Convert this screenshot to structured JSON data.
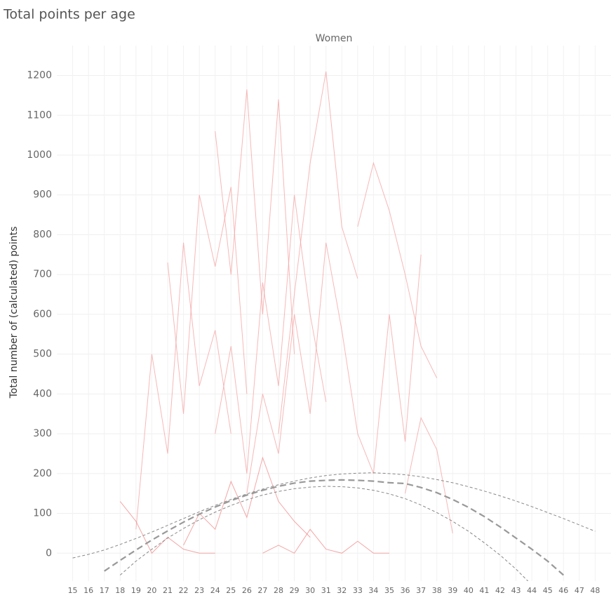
{
  "chart_data": {
    "type": "line",
    "title": "Total points per age",
    "facet": "Women",
    "ylabel": "Total number of (calculated) points",
    "x": [
      15,
      16,
      17,
      18,
      19,
      20,
      21,
      22,
      23,
      24,
      25,
      26,
      27,
      28,
      29,
      30,
      31,
      32,
      33,
      34,
      35,
      36,
      37,
      38,
      39,
      40,
      41,
      42,
      43,
      44,
      45,
      46,
      47,
      48
    ],
    "xlim": [
      14,
      49
    ],
    "ylim": [
      -70,
      1275
    ],
    "yticks": [
      0,
      100,
      200,
      300,
      400,
      500,
      600,
      700,
      800,
      900,
      1000,
      1100,
      1200
    ],
    "grid": true,
    "series": [
      {
        "color": "#f4a0a0",
        "values": [
          null,
          null,
          null,
          null,
          null,
          null,
          null,
          null,
          null,
          null,
          null,
          null,
          null,
          300,
          650,
          980,
          1210,
          820,
          690,
          null,
          null,
          null,
          null,
          null,
          null,
          null,
          null,
          null,
          null,
          null,
          null,
          null,
          null,
          null
        ]
      },
      {
        "color": "#f4a0a0",
        "values": [
          null,
          null,
          null,
          null,
          null,
          null,
          null,
          null,
          null,
          1060,
          700,
          1165,
          600,
          1140,
          500,
          null,
          null,
          null,
          null,
          null,
          null,
          null,
          null,
          null,
          null,
          null,
          null,
          null,
          null,
          null,
          null,
          null,
          null,
          null
        ]
      },
      {
        "color": "#f4a0a0",
        "values": [
          null,
          null,
          null,
          null,
          null,
          null,
          730,
          350,
          900,
          720,
          920,
          400,
          null,
          null,
          null,
          null,
          null,
          null,
          null,
          null,
          null,
          null,
          null,
          null,
          null,
          null,
          null,
          null,
          null,
          null,
          null,
          null,
          null,
          null
        ]
      },
      {
        "color": "#f4a0a0",
        "values": [
          null,
          null,
          null,
          null,
          null,
          null,
          null,
          null,
          null,
          null,
          null,
          null,
          null,
          null,
          null,
          null,
          null,
          null,
          820,
          980,
          860,
          700,
          520,
          440,
          null,
          null,
          null,
          null,
          null,
          null,
          null,
          null,
          null,
          null
        ]
      },
      {
        "color": "#f4a0a0",
        "values": [
          null,
          null,
          null,
          null,
          60,
          500,
          250,
          780,
          420,
          560,
          300,
          null,
          null,
          null,
          null,
          null,
          null,
          null,
          null,
          null,
          null,
          null,
          null,
          null,
          null,
          null,
          null,
          null,
          null,
          null,
          null,
          null,
          null,
          null
        ]
      },
      {
        "color": "#f4a0a0",
        "values": [
          null,
          null,
          null,
          null,
          null,
          null,
          null,
          null,
          null,
          null,
          null,
          150,
          400,
          250,
          600,
          350,
          780,
          560,
          300,
          null,
          null,
          null,
          null,
          null,
          null,
          null,
          null,
          null,
          null,
          null,
          null,
          null,
          null,
          null
        ]
      },
      {
        "color": "#f08888",
        "values": [
          null,
          null,
          null,
          null,
          null,
          null,
          null,
          20,
          100,
          60,
          180,
          90,
          240,
          130,
          80,
          40,
          null,
          null,
          null,
          null,
          null,
          null,
          null,
          null,
          null,
          null,
          null,
          null,
          null,
          null,
          null,
          null,
          null,
          null
        ]
      },
      {
        "color": "#f4a0a0",
        "values": [
          null,
          null,
          null,
          null,
          null,
          null,
          null,
          null,
          null,
          null,
          null,
          null,
          null,
          null,
          null,
          null,
          null,
          null,
          300,
          200,
          600,
          280,
          750,
          null,
          null,
          null,
          null,
          null,
          null,
          null,
          null,
          null,
          null,
          null
        ]
      },
      {
        "color": "#f08888",
        "values": [
          null,
          null,
          null,
          130,
          80,
          0,
          40,
          10,
          0,
          0,
          null,
          null,
          null,
          null,
          null,
          null,
          null,
          null,
          null,
          null,
          null,
          null,
          null,
          null,
          null,
          null,
          null,
          null,
          null,
          null,
          null,
          null,
          null,
          null
        ]
      },
      {
        "color": "#f08888",
        "values": [
          null,
          null,
          null,
          null,
          null,
          null,
          null,
          null,
          null,
          null,
          null,
          null,
          0,
          20,
          0,
          60,
          10,
          0,
          30,
          0,
          0,
          null,
          null,
          null,
          null,
          null,
          null,
          null,
          null,
          null,
          null,
          null,
          null,
          null
        ]
      },
      {
        "color": "#f4a0a0",
        "values": [
          null,
          null,
          null,
          null,
          null,
          null,
          null,
          null,
          null,
          300,
          520,
          200,
          680,
          420,
          900,
          600,
          380,
          null,
          null,
          null,
          null,
          null,
          null,
          null,
          null,
          null,
          null,
          null,
          null,
          null,
          null,
          null,
          null,
          null
        ]
      },
      {
        "color": "#f4a0a0",
        "values": [
          null,
          null,
          null,
          null,
          null,
          null,
          null,
          null,
          null,
          null,
          null,
          null,
          null,
          null,
          null,
          null,
          null,
          null,
          null,
          null,
          null,
          150,
          340,
          260,
          50,
          null,
          null,
          null,
          null,
          null,
          null,
          null,
          null,
          null
        ]
      },
      {
        "color": "#999999",
        "dash": "9 5",
        "width": 2.2,
        "values": [
          null,
          null,
          -45,
          -18,
          8,
          33,
          56,
          78,
          98,
          116,
          132,
          146,
          158,
          168,
          176,
          181,
          183,
          184,
          183,
          181,
          177,
          175,
          165,
          152,
          135,
          115,
          92,
          66,
          38,
          10,
          -20,
          -55,
          null,
          null
        ]
      },
      {
        "color": "#888888",
        "dash": "4 3",
        "width": 1,
        "values": [
          -12,
          -3,
          8,
          22,
          37,
          53,
          70,
          87,
          104,
          120,
          135,
          149,
          161,
          172,
          181,
          189,
          195,
          199,
          201,
          202,
          200,
          197,
          192,
          185,
          177,
          167,
          156,
          144,
          131,
          117,
          102,
          87,
          71,
          55
        ]
      },
      {
        "color": "#888888",
        "dash": "4 3",
        "width": 1,
        "values": [
          null,
          null,
          null,
          -55,
          -20,
          10,
          38,
          62,
          84,
          103,
          120,
          134,
          146,
          155,
          162,
          166,
          168,
          167,
          164,
          158,
          149,
          137,
          121,
          102,
          80,
          55,
          26,
          -5,
          -40,
          -80,
          null,
          null,
          null,
          null
        ]
      }
    ]
  }
}
